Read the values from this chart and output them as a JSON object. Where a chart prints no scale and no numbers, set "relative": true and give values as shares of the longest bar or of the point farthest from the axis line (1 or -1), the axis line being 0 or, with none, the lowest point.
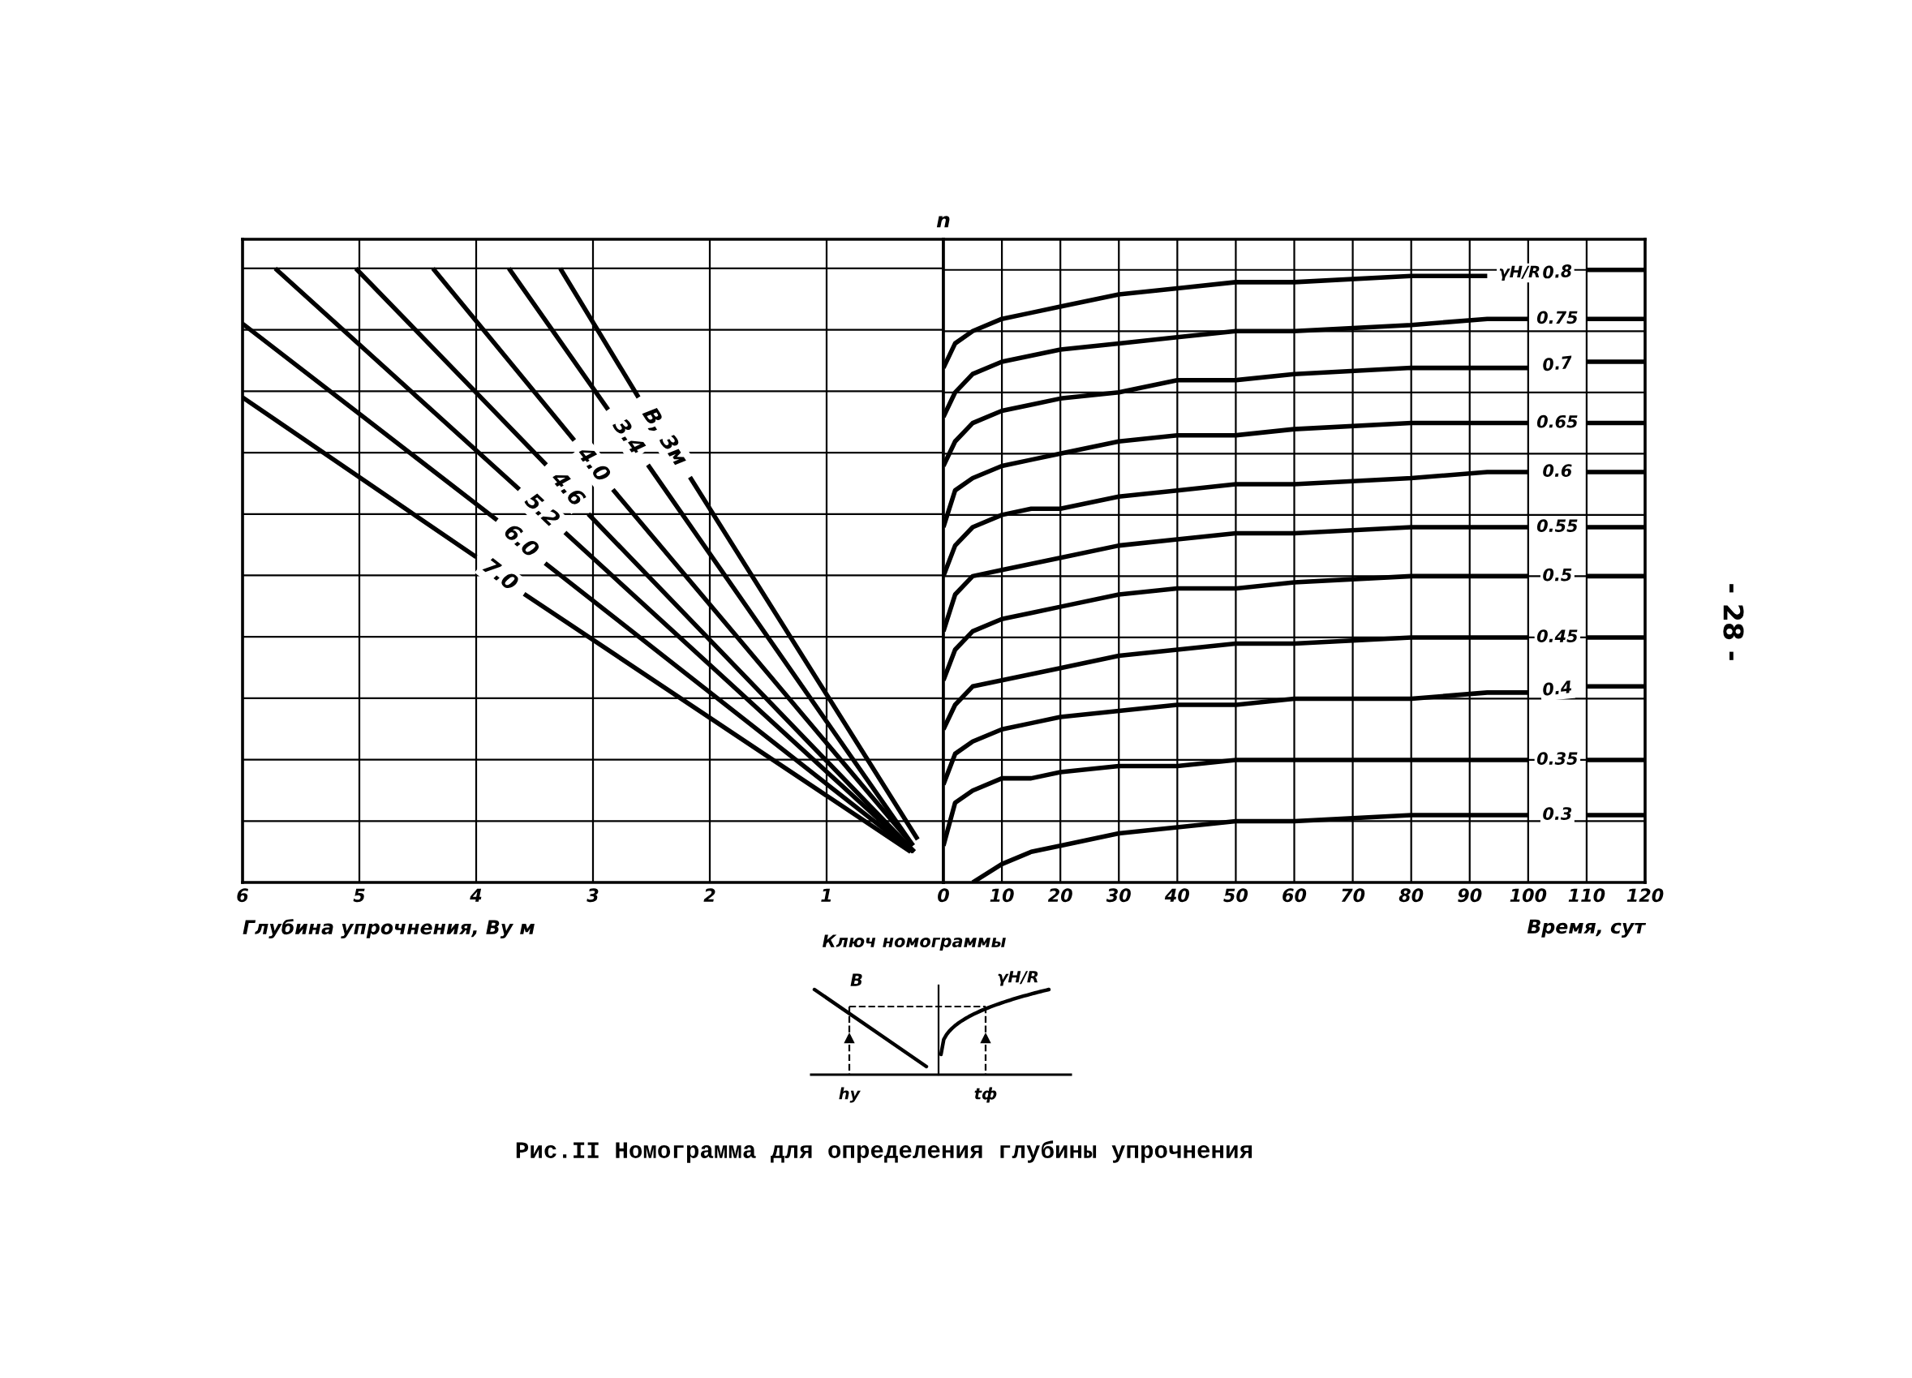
{
  "chart_data": [
    {
      "type": "line",
      "xlabel": "Глубина упрочнения, Ву м",
      "xlim": [
        6,
        0
      ],
      "xticks": [
        6,
        5,
        4,
        3,
        2,
        1,
        {
          "value": 0,
          "label": null
        }
      ],
      "relative": true,
      "grid": true,
      "series": [
        {
          "name": "В, 3м",
          "color": "#000000",
          "x": [
            3.28,
            2.61,
            2.39,
            2.17,
            0.22
          ],
          "values": [
            1.0,
            0.79,
            null,
            0.66,
            0.07
          ]
        },
        {
          "name": "3.4",
          "color": "#000000",
          "x": [
            3.72,
            2.87,
            2.7,
            2.53,
            0.26
          ],
          "values": [
            1.0,
            0.77,
            null,
            0.68,
            0.06
          ]
        },
        {
          "name": "4.0",
          "color": "#000000",
          "x": [
            4.37,
            3.16,
            3.0,
            2.83,
            0.26
          ],
          "values": [
            1.0,
            0.72,
            null,
            0.64,
            0.06
          ]
        },
        {
          "name": "4.6",
          "color": "#000000",
          "x": [
            5.03,
            3.4,
            3.22,
            3.04,
            0.25
          ],
          "values": [
            1.0,
            0.68,
            null,
            0.6,
            0.05
          ]
        },
        {
          "name": "5.2",
          "color": "#000000",
          "x": [
            5.72,
            3.63,
            3.44,
            3.24,
            0.25
          ],
          "values": [
            1.0,
            0.64,
            null,
            0.57,
            0.05
          ]
        },
        {
          "name": "6.0",
          "color": "#000000",
          "x": [
            6.0,
            3.82,
            3.62,
            3.41,
            0.26
          ],
          "values": [
            0.91,
            0.59,
            null,
            0.52,
            0.05
          ]
        },
        {
          "name": "7.0",
          "color": "#000000",
          "x": [
            6.0,
            4.0,
            3.8,
            3.59,
            0.28
          ],
          "values": [
            0.79,
            0.53,
            null,
            0.47,
            0.05
          ]
        }
      ],
      "annotations": [
        "Ключ номограммы",
        "В",
        "γH/R",
        "hу",
        "tф",
        "Рис.II Номограмма для определения глубины упрочнения",
        "- 28 -"
      ]
    },
    {
      "type": "line",
      "xlabel": "Время, сут",
      "ylabel": "n",
      "xlim": [
        0,
        120
      ],
      "xticks": [
        0,
        10,
        20,
        30,
        40,
        50,
        60,
        70,
        80,
        90,
        100,
        110,
        120
      ],
      "relative": true,
      "grid": true,
      "x": [
        0,
        2,
        5,
        10,
        15,
        20,
        30,
        40,
        50,
        60,
        80,
        93,
        100,
        105,
        110,
        120
      ],
      "series": [
        {
          "name": "0.8",
          "color": "#000000",
          "values": [
            0.84,
            0.88,
            0.9,
            0.92,
            0.93,
            0.94,
            0.96,
            0.97,
            0.98,
            0.98,
            0.99,
            0.99,
            null,
            null,
            1.0,
            1.0
          ]
        },
        {
          "name": "0.75",
          "color": "#000000",
          "values": [
            0.76,
            0.8,
            0.83,
            0.85,
            0.86,
            0.87,
            0.88,
            0.89,
            0.9,
            0.9,
            0.91,
            0.92,
            0.92,
            null,
            0.92,
            0.92
          ]
        },
        {
          "name": "0.7",
          "color": "#000000",
          "values": [
            0.68,
            0.72,
            0.75,
            0.77,
            0.78,
            0.79,
            0.8,
            0.82,
            0.82,
            0.83,
            0.84,
            0.84,
            0.84,
            null,
            0.85,
            0.85
          ]
        },
        {
          "name": "0.65",
          "color": "#000000",
          "values": [
            0.58,
            0.64,
            0.66,
            0.68,
            0.69,
            0.7,
            0.72,
            0.73,
            0.73,
            0.74,
            0.75,
            0.75,
            0.75,
            null,
            0.75,
            0.75
          ]
        },
        {
          "name": "0.6",
          "color": "#000000",
          "values": [
            0.5,
            0.55,
            0.58,
            0.6,
            0.61,
            0.61,
            0.63,
            0.64,
            0.65,
            0.65,
            0.66,
            0.67,
            0.67,
            null,
            0.67,
            0.67
          ]
        },
        {
          "name": "0.55",
          "color": "#000000",
          "values": [
            0.41,
            0.47,
            0.5,
            0.51,
            0.52,
            0.53,
            0.55,
            0.56,
            0.57,
            0.57,
            0.58,
            0.58,
            0.58,
            null,
            0.58,
            0.58
          ]
        },
        {
          "name": "0.5",
          "color": "#000000",
          "values": [
            0.33,
            0.38,
            0.41,
            0.43,
            0.44,
            0.45,
            0.47,
            0.48,
            0.48,
            0.49,
            0.5,
            0.5,
            0.5,
            null,
            0.5,
            0.5
          ]
        },
        {
          "name": "0.45",
          "color": "#000000",
          "values": [
            0.25,
            0.29,
            0.32,
            0.33,
            0.34,
            0.35,
            0.37,
            0.38,
            0.39,
            0.39,
            0.4,
            0.4,
            0.4,
            null,
            0.4,
            0.4
          ]
        },
        {
          "name": "0.4",
          "color": "#000000",
          "values": [
            0.16,
            0.21,
            0.23,
            0.25,
            0.26,
            0.27,
            0.28,
            0.29,
            0.29,
            0.3,
            0.3,
            0.31,
            0.31,
            null,
            0.32,
            0.32
          ]
        },
        {
          "name": "0.35",
          "color": "#000000",
          "values": [
            0.06,
            0.13,
            0.15,
            0.17,
            0.17,
            0.18,
            0.19,
            0.19,
            0.2,
            0.2,
            0.2,
            0.2,
            0.2,
            null,
            0.2,
            0.2
          ]
        },
        {
          "name": "0.3",
          "color": "#000000",
          "values": [
            null,
            null,
            0.0,
            0.03,
            0.05,
            0.06,
            0.08,
            0.09,
            0.1,
            0.1,
            0.11,
            0.11,
            0.11,
            null,
            0.11,
            0.11
          ]
        }
      ],
      "annotations": [
        "γH/R"
      ]
    }
  ]
}
